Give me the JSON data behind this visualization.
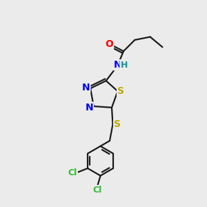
{
  "bg_color": "#ebebeb",
  "bond_color": "#1a1a1a",
  "bond_width": 1.6,
  "atom_colors": {
    "O": "#ff0000",
    "N": "#0000ee",
    "S": "#bbaa00",
    "Cl": "#33bb33",
    "H": "#009999",
    "C": "#1a1a1a"
  },
  "font_size": 10,
  "fig_size": [
    3.0,
    3.0
  ],
  "dpi": 100
}
